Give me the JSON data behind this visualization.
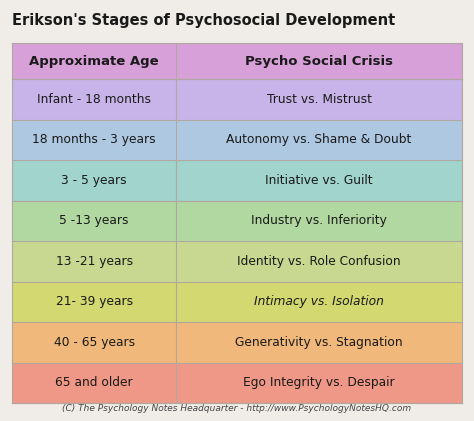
{
  "title": "Erikson's Stages of Psychosocial Development",
  "header": [
    "Approximate Age",
    "Psycho Social Crisis"
  ],
  "header_color": "#d8a0d8",
  "rows": [
    [
      "Infant - 18 months",
      "Trust vs. Mistrust"
    ],
    [
      "18 months - 3 years",
      "Autonomy vs. Shame & Doubt"
    ],
    [
      "3 - 5 years",
      "Initiative vs. Guilt"
    ],
    [
      "5 -13 years",
      "Industry vs. Inferiority"
    ],
    [
      "13 -21 years",
      "Identity vs. Role Confusion"
    ],
    [
      "21- 39 years",
      "Intimacy vs. Isolation"
    ],
    [
      "40 - 65 years",
      "Generativity vs. Stagnation"
    ],
    [
      "65 and older",
      "Ego Integrity vs. Despair"
    ]
  ],
  "row_colors": [
    "#c8b4e8",
    "#aec8e2",
    "#a0d4cc",
    "#b0d8a0",
    "#c8d890",
    "#d4d870",
    "#f0b87a",
    "#f09888"
  ],
  "footer": "(C) The Psychology Notes Headquarter - http://www.PsychologyNotesHQ.com",
  "bg_color": "#f0ede8",
  "border_color": "#b0a8a0",
  "title_fontsize": 10.5,
  "header_fontsize": 9.5,
  "cell_fontsize": 8.8,
  "footer_fontsize": 6.5
}
